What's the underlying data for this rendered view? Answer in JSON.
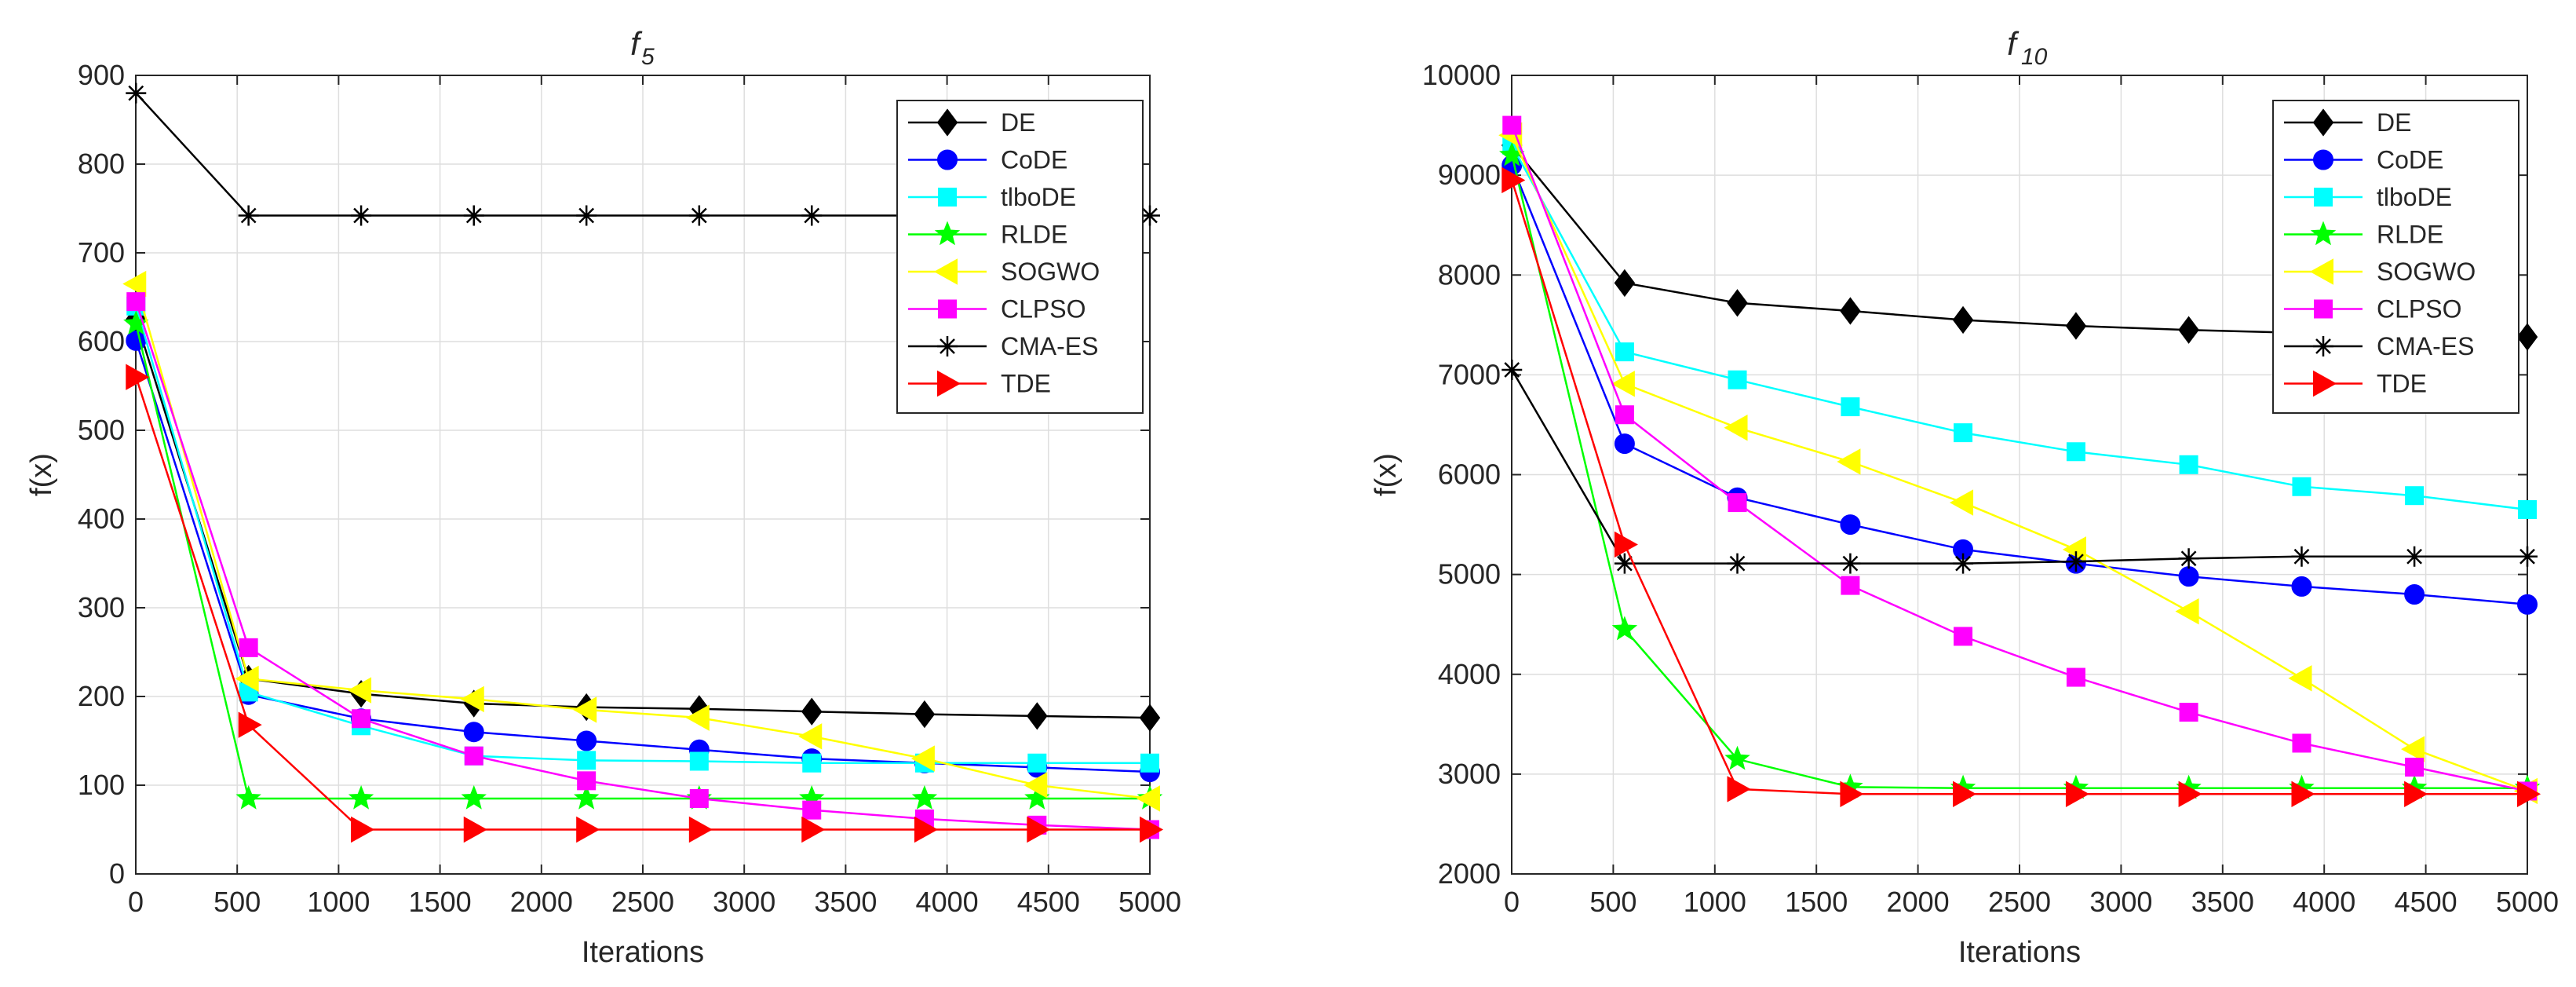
{
  "chart_data": [
    {
      "type": "line",
      "title": "f",
      "title_subscript": "5",
      "xlabel": "Iterations",
      "ylabel": "f(x)",
      "xlim": [
        0,
        5000
      ],
      "ylim": [
        0,
        900
      ],
      "xticks": [
        0,
        500,
        1000,
        1500,
        2000,
        2500,
        3000,
        3500,
        4000,
        4500,
        5000
      ],
      "yticks": [
        0,
        100,
        200,
        300,
        400,
        500,
        600,
        700,
        800,
        900
      ],
      "grid": true,
      "legend_position": "top-right",
      "x": [
        1,
        556,
        1111,
        1667,
        2222,
        2778,
        3333,
        3889,
        4444,
        5000
      ],
      "series": [
        {
          "name": "DE",
          "color": "#000000",
          "marker": "diamond",
          "values": [
            625,
            220,
            203,
            192,
            188,
            186,
            183,
            180,
            178,
            176
          ]
        },
        {
          "name": "CoDE",
          "color": "#0000FF",
          "marker": "circle",
          "values": [
            601,
            202,
            175,
            160,
            150,
            140,
            130,
            125,
            120,
            115
          ]
        },
        {
          "name": "tlboDE",
          "color": "#00FFFF",
          "marker": "square",
          "values": [
            640,
            205,
            167,
            133,
            128,
            127,
            125,
            125,
            125,
            125
          ]
        },
        {
          "name": "RLDE",
          "color": "#00FF00",
          "marker": "star",
          "values": [
            620,
            85,
            85,
            85,
            85,
            85,
            85,
            85,
            85,
            85
          ]
        },
        {
          "name": "SOGWO",
          "color": "#FFFF00",
          "marker": "triangle-left",
          "values": [
            665,
            220,
            207,
            197,
            185,
            176,
            155,
            130,
            100,
            85
          ]
        },
        {
          "name": "CLPSO",
          "color": "#FF00FF",
          "marker": "square",
          "values": [
            645,
            255,
            175,
            133,
            105,
            85,
            72,
            62,
            55,
            50
          ]
        },
        {
          "name": "CMA-ES",
          "color": "#000000",
          "marker": "asterisk",
          "values": [
            880,
            742,
            742,
            742,
            742,
            742,
            742,
            742,
            742,
            742
          ]
        },
        {
          "name": "TDE",
          "color": "#FF0000",
          "marker": "triangle-right",
          "values": [
            560,
            168,
            50,
            50,
            50,
            50,
            50,
            50,
            50,
            50
          ]
        }
      ]
    },
    {
      "type": "line",
      "title": "f",
      "title_subscript": "10",
      "xlabel": "Iterations",
      "ylabel": "f(x)",
      "xlim": [
        0,
        5000
      ],
      "ylim": [
        2000,
        10000
      ],
      "xticks": [
        0,
        500,
        1000,
        1500,
        2000,
        2500,
        3000,
        3500,
        4000,
        4500,
        5000
      ],
      "yticks": [
        2000,
        3000,
        4000,
        5000,
        6000,
        7000,
        8000,
        9000,
        10000
      ],
      "grid": true,
      "legend_position": "top-right",
      "x": [
        1,
        556,
        1111,
        1667,
        2222,
        2778,
        3333,
        3889,
        4444,
        5000
      ],
      "series": [
        {
          "name": "DE",
          "color": "#000000",
          "marker": "diamond",
          "values": [
            9300,
            7920,
            7720,
            7640,
            7550,
            7490,
            7450,
            7420,
            7400,
            7380
          ]
        },
        {
          "name": "CoDE",
          "color": "#0000FF",
          "marker": "circle",
          "values": [
            9100,
            6310,
            5770,
            5500,
            5250,
            5110,
            4980,
            4880,
            4800,
            4700
          ]
        },
        {
          "name": "tlboDE",
          "color": "#00FFFF",
          "marker": "square",
          "values": [
            9300,
            7230,
            6950,
            6680,
            6420,
            6230,
            6100,
            5880,
            5790,
            5650
          ]
        },
        {
          "name": "RLDE",
          "color": "#00FF00",
          "marker": "star",
          "values": [
            9200,
            4450,
            3150,
            2870,
            2860,
            2860,
            2860,
            2860,
            2860,
            2860
          ]
        },
        {
          "name": "SOGWO",
          "color": "#FFFF00",
          "marker": "triangle-left",
          "values": [
            9400,
            6910,
            6470,
            6130,
            5720,
            5250,
            4630,
            3960,
            3250,
            2830
          ]
        },
        {
          "name": "CLPSO",
          "color": "#FF00FF",
          "marker": "square",
          "values": [
            9500,
            6600,
            5720,
            4890,
            4380,
            3970,
            3620,
            3310,
            3070,
            2830
          ]
        },
        {
          "name": "CMA-ES",
          "color": "#000000",
          "marker": "asterisk",
          "values": [
            7050,
            5110,
            5110,
            5110,
            5110,
            5130,
            5160,
            5180,
            5180,
            5180
          ]
        },
        {
          "name": "TDE",
          "color": "#FF0000",
          "marker": "triangle-right",
          "values": [
            8950,
            5300,
            2850,
            2800,
            2800,
            2800,
            2800,
            2800,
            2800,
            2800
          ]
        }
      ]
    }
  ]
}
